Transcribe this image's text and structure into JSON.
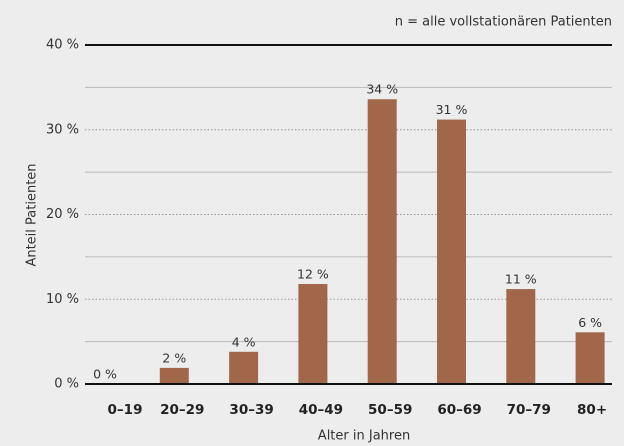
{
  "chart_data": {
    "type": "bar",
    "annotation": "n = alle vollstationären Patienten",
    "x_label": "Alter in Jahren",
    "y_label": "Anteil Patienten",
    "categories": [
      "0–19",
      "20–29",
      "30–39",
      "40–49",
      "50–59",
      "60–69",
      "70–79",
      "80+"
    ],
    "values": [
      0,
      1.9,
      3.8,
      11.8,
      33.6,
      31.2,
      11.2,
      6.1
    ],
    "value_labels": [
      "0 %",
      "2 %",
      "4 %",
      "12 %",
      "34 %",
      "31 %",
      "11 %",
      "6 %"
    ],
    "color": "#a0674a",
    "ylim": [
      0,
      40
    ],
    "yticks": [
      {
        "value": 0,
        "label": "0 %"
      },
      {
        "value": 10,
        "label": "10 %"
      },
      {
        "value": 20,
        "label": "20 %"
      },
      {
        "value": 30,
        "label": "30 %"
      },
      {
        "value": 40,
        "label": "40 %"
      }
    ],
    "minor_yticks": [
      5,
      15,
      25,
      35
    ],
    "grid": true
  }
}
